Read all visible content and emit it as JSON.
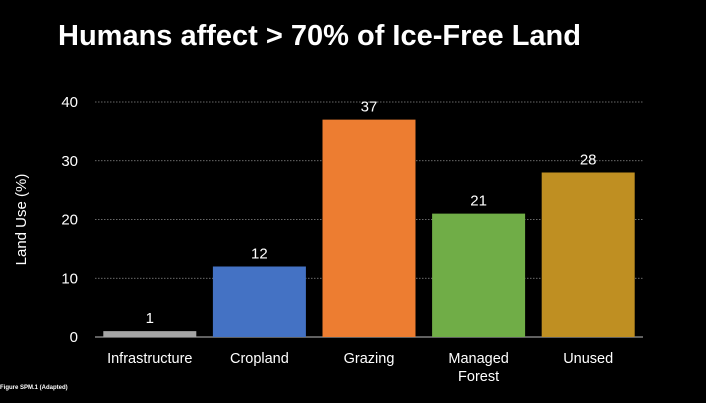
{
  "slide": {
    "title": "Humans affect > 70% of Ice-Free Land",
    "source_note": "Figure SPM.1 (Adapted)"
  },
  "chart_data": {
    "type": "bar",
    "title": "",
    "xlabel": "",
    "ylabel": "Land Use (%)",
    "ylim": [
      0,
      40
    ],
    "yticks": [
      0,
      10,
      20,
      30,
      40
    ],
    "grid": true,
    "categories": [
      "Infrastructure",
      "Cropland",
      "Grazing",
      "Managed Forest",
      "Unused"
    ],
    "category_lines": [
      [
        "Infrastructure"
      ],
      [
        "Cropland"
      ],
      [
        "Grazing"
      ],
      [
        "Managed",
        "Forest"
      ],
      [
        "Unused"
      ]
    ],
    "values": [
      1,
      12,
      37,
      21,
      28
    ],
    "data_labels": [
      "1",
      "12",
      "37",
      "21",
      "28"
    ],
    "colors": [
      "#a5a5a5",
      "#4472c4",
      "#ed7d31",
      "#70ad47",
      "#bf8f22"
    ]
  }
}
